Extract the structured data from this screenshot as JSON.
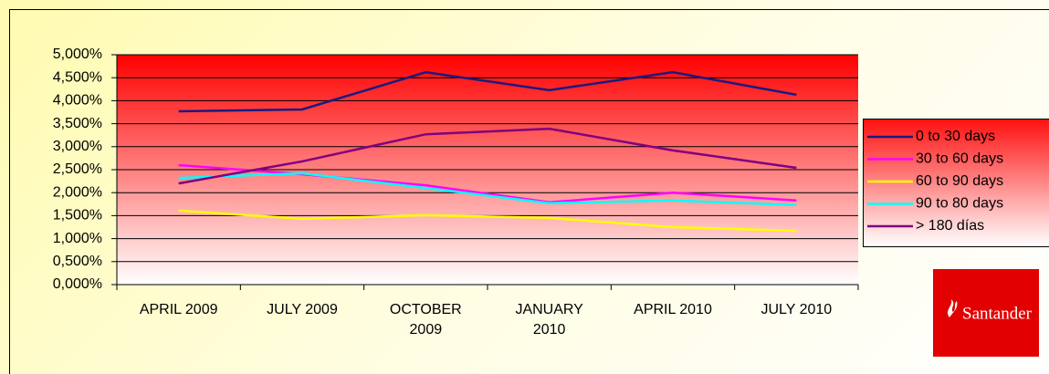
{
  "chart_data": {
    "type": "line",
    "categories": [
      "APRIL 2009",
      "JULY 2009",
      "OCTOBER 2009",
      "JANUARY 2010",
      "APRIL 2010",
      "JULY 2010"
    ],
    "series": [
      {
        "name": "0 to 30 days",
        "color": "#1a1a80",
        "values": [
          3.77,
          3.81,
          4.62,
          4.23,
          4.62,
          4.13
        ]
      },
      {
        "name": "30 to 60 days",
        "color": "#ff00ff",
        "values": [
          2.6,
          2.4,
          2.16,
          1.79,
          2.0,
          1.83
        ]
      },
      {
        "name": "60 to 90 days",
        "color": "#ffff00",
        "values": [
          1.61,
          1.43,
          1.51,
          1.45,
          1.25,
          1.17
        ]
      },
      {
        "name": "90 to 80 days",
        "color": "#00ffff",
        "values": [
          2.32,
          2.42,
          2.1,
          1.77,
          1.83,
          1.73
        ]
      },
      {
        "name": "> 180 días",
        "color": "#800080",
        "values": [
          2.2,
          2.68,
          3.27,
          3.39,
          2.92,
          2.54
        ]
      }
    ],
    "ylim": [
      0,
      5
    ],
    "yticks": [
      {
        "value": 0,
        "label": "0,000%"
      },
      {
        "value": 0.5,
        "label": "0,500%"
      },
      {
        "value": 1,
        "label": "1,000%"
      },
      {
        "value": 1.5,
        "label": "1,500%"
      },
      {
        "value": 2,
        "label": "2,000%"
      },
      {
        "value": 2.5,
        "label": "2,500%"
      },
      {
        "value": 3,
        "label": "3,000%"
      },
      {
        "value": 3.5,
        "label": "3,500%"
      },
      {
        "value": 4,
        "label": "4,000%"
      },
      {
        "value": 4.5,
        "label": "4,500%"
      },
      {
        "value": 5,
        "label": "5,000%"
      }
    ],
    "grid": true,
    "legend": "right",
    "logo_text": "Santander"
  }
}
